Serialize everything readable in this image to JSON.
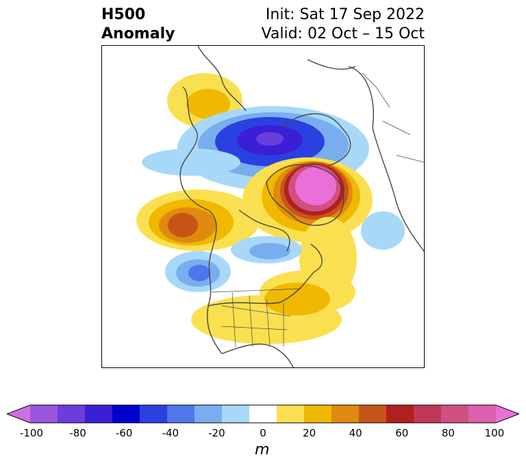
{
  "header": {
    "variable": "H500",
    "subtitle": "Anomaly",
    "init": "Init: Sat 17 Sep 2022",
    "valid": "Valid: 02 Oct – 15 Oct"
  },
  "colorbar": {
    "unit": "m",
    "tick_labels": [
      "-100",
      "-80",
      "-60",
      "-40",
      "-20",
      "0",
      "20",
      "40",
      "60",
      "80",
      "100"
    ],
    "colors": [
      "#d070e0",
      "#9a55e0",
      "#6a3ddc",
      "#3b1fd6",
      "#0000cc",
      "#2a40e0",
      "#4f77ea",
      "#78aef0",
      "#a8d8f8",
      "#ffffff",
      "#fae050",
      "#f0b800",
      "#e08a10",
      "#c85518",
      "#b02020",
      "#c03858",
      "#d05080",
      "#dc60b0",
      "#e870d8"
    ]
  },
  "map": {
    "projection": "polar stereographic (North America / Arctic)",
    "features": [
      "coastlines",
      "country borders",
      "US state borders"
    ]
  }
}
